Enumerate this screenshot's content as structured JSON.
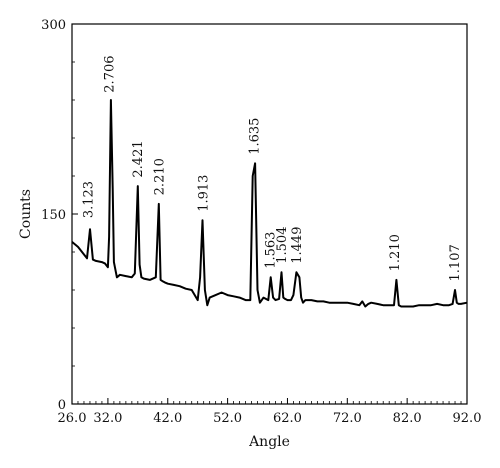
{
  "chart_data": {
    "type": "line",
    "title": "",
    "xlabel": "Angle",
    "ylabel": "Counts",
    "xlim": [
      26.0,
      92.0
    ],
    "ylim": [
      0,
      300
    ],
    "grid": false,
    "xticks": [
      {
        "value": 26.0,
        "label": "26.0"
      },
      {
        "value": 32.0,
        "label": "32.0"
      },
      {
        "value": 42.0,
        "label": "42.0"
      },
      {
        "value": 52.0,
        "label": "52.0"
      },
      {
        "value": 62.0,
        "label": "62.0"
      },
      {
        "value": 72.0,
        "label": "72.0"
      },
      {
        "value": 82.0,
        "label": "82.0"
      },
      {
        "value": 92.0,
        "label": "92.0"
      }
    ],
    "yticks": [
      {
        "value": 0,
        "label": "0"
      },
      {
        "value": 150,
        "label": "150"
      },
      {
        "value": 300,
        "label": "300"
      }
    ],
    "series": [
      {
        "color": "#000000",
        "x": [
          26.0,
          27.0,
          28.0,
          28.5,
          29.0,
          29.5,
          30.0,
          31.0,
          31.5,
          32.0,
          32.2,
          32.5,
          32.8,
          33.0,
          33.5,
          34.0,
          35.0,
          36.0,
          36.5,
          37.0,
          37.3,
          37.6,
          38.0,
          39.0,
          40.0,
          40.5,
          40.8,
          41.1,
          41.5,
          42.0,
          43.0,
          44.0,
          45.0,
          46.0,
          47.0,
          47.4,
          47.8,
          48.2,
          48.6,
          49.0,
          50.0,
          51.0,
          52.0,
          53.0,
          54.0,
          55.0,
          55.8,
          56.2,
          56.6,
          57.0,
          57.4,
          58.0,
          58.8,
          59.2,
          59.6,
          60.0,
          60.6,
          61.0,
          61.3,
          61.6,
          62.0,
          62.6,
          63.0,
          63.5,
          64.0,
          64.3,
          64.6,
          65.0,
          65.4,
          66.0,
          67.0,
          68.0,
          69.0,
          70.0,
          71.0,
          72.0,
          73.0,
          74.0,
          74.5,
          75.0,
          75.5,
          76.0,
          77.0,
          78.0,
          79.0,
          79.8,
          80.2,
          80.6,
          81.0,
          82.0,
          83.0,
          84.0,
          85.0,
          86.0,
          87.0,
          88.0,
          89.0,
          89.6,
          90.0,
          90.3,
          90.6,
          91.0,
          92.0
        ],
        "y": [
          128,
          124,
          118,
          115,
          138,
          114,
          113,
          112,
          111,
          108,
          132,
          240,
          170,
          112,
          100,
          102,
          101,
          100,
          103,
          172,
          110,
          100,
          99,
          98,
          100,
          158,
          98,
          97,
          96,
          95,
          94,
          93,
          91,
          90,
          82,
          100,
          145,
          90,
          78,
          84,
          86,
          88,
          86,
          85,
          84,
          82,
          82,
          180,
          190,
          90,
          80,
          84,
          82,
          100,
          84,
          82,
          83,
          104,
          84,
          83,
          82,
          82,
          86,
          104,
          100,
          84,
          80,
          82,
          82,
          82,
          81,
          81,
          80,
          80,
          80,
          80,
          79,
          78,
          81,
          77,
          79,
          80,
          79,
          78,
          78,
          78,
          98,
          78,
          77,
          77,
          77,
          78,
          78,
          78,
          79,
          78,
          78,
          79,
          90,
          80,
          79,
          79,
          80
        ]
      }
    ],
    "annotations": [
      {
        "label": "3.123",
        "x": 28.8,
        "y": 142
      },
      {
        "label": "2.706",
        "x": 32.3,
        "y": 241
      },
      {
        "label": "2.421",
        "x": 37.0,
        "y": 174
      },
      {
        "label": "2.210",
        "x": 40.6,
        "y": 160
      },
      {
        "label": "1.913",
        "x": 48.0,
        "y": 147
      },
      {
        "label": "1.635",
        "x": 56.5,
        "y": 192
      },
      {
        "label": "1.563",
        "x": 59.2,
        "y": 102
      },
      {
        "label": "1.504",
        "x": 61.1,
        "y": 106
      },
      {
        "label": "1.449",
        "x": 63.6,
        "y": 106
      },
      {
        "label": "1.210",
        "x": 80.0,
        "y": 100
      },
      {
        "label": "1.107",
        "x": 90.0,
        "y": 92
      }
    ]
  }
}
